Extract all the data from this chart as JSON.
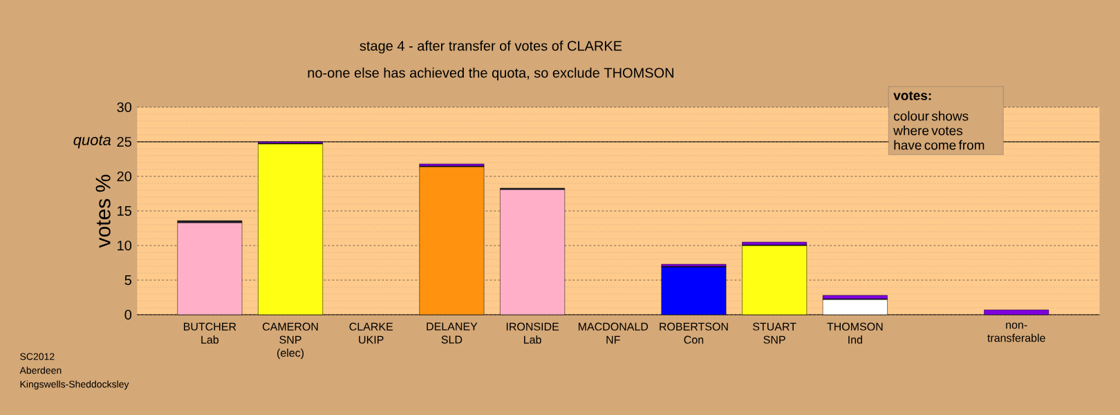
{
  "chart_data": {
    "type": "bar",
    "stacked": true,
    "title": "stage 4 - after transfer of votes of CLARKE",
    "subtitle": "no-one else has achieved the quota, so exclude THOMSON",
    "ylabel": "votes %",
    "categories": [
      "BUTCHER\nLab",
      "CAMERON\nSNP\n(elec)",
      "CLARKE\nUKIP",
      "DELANEY\nSLD",
      "IRONSIDE\nLab",
      "MACDONALD\nNF",
      "ROBERTSON\nCon",
      "STUART\nSNP",
      "THOMSON\nInd",
      null,
      "non-\ntransferable"
    ],
    "series": [
      {
        "colors": [
          "#ffb0c8",
          "#ffff14",
          null,
          "#ff930f",
          "#ffb0c8",
          null,
          "#0000ff",
          "#ffff14",
          "#ffffff",
          null,
          null
        ],
        "values": [
          13.3,
          24.7,
          0,
          21.4,
          18.1,
          0,
          6.9,
          10.0,
          2.2,
          null,
          0
        ]
      },
      {
        "color": "#202028",
        "values": [
          0.3,
          0.1,
          0,
          0.1,
          0.2,
          0,
          0.1,
          0.1,
          0.1,
          null,
          0
        ]
      },
      {
        "color": "#8000e0",
        "values": [
          0,
          0.2,
          0,
          0.3,
          0,
          0,
          0.3,
          0.4,
          0.5,
          null,
          0.7
        ]
      }
    ],
    "ylim": [
      0,
      30
    ],
    "yticks": [
      0,
      5,
      10,
      15,
      20,
      25,
      30
    ],
    "grid": "y",
    "ref_lines": [
      {
        "axis": "y",
        "value": 25,
        "label": "quota"
      }
    ],
    "annotations": [
      "votes:",
      "colour shows where votes have come from",
      "SC2012\nAberdeen\nKingswells-Sheddocksley"
    ]
  }
}
